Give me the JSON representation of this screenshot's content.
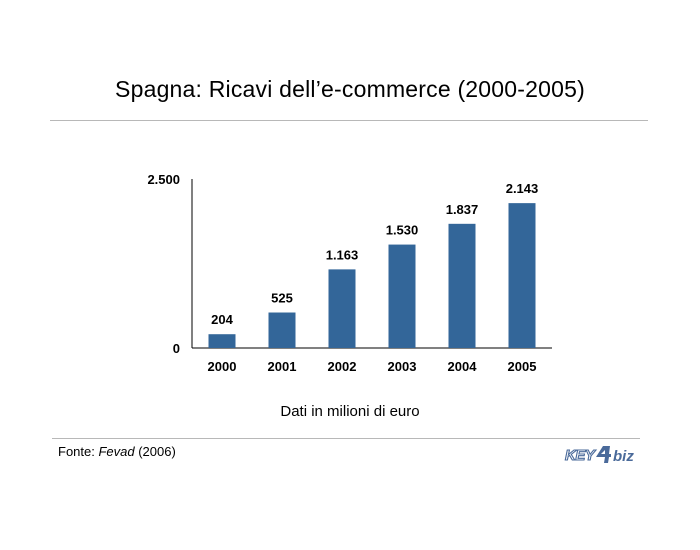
{
  "chart_data": {
    "type": "bar",
    "title": "Spagna: Ricavi dell’e-commerce (2000-2005)",
    "categories": [
      "2000",
      "2001",
      "2002",
      "2003",
      "2004",
      "2005"
    ],
    "values": [
      204,
      525,
      1163,
      1530,
      1837,
      2143
    ],
    "value_labels": [
      "204",
      "525",
      "1.163",
      "1.530",
      "1.837",
      "2.143"
    ],
    "yticks": [
      0,
      2500
    ],
    "ytick_labels": [
      "0",
      "2.500"
    ],
    "ylim": [
      0,
      2500
    ],
    "bar_color": "#336699",
    "grid": false,
    "legend": "none"
  },
  "note": "Dati in milioni di euro",
  "source": {
    "prefix": "Fonte: ",
    "name": "Fevad",
    "suffix": " (2006)"
  },
  "logo": {
    "text_left": "KEY",
    "text_right": "biz",
    "color": "#4a6a9a"
  }
}
